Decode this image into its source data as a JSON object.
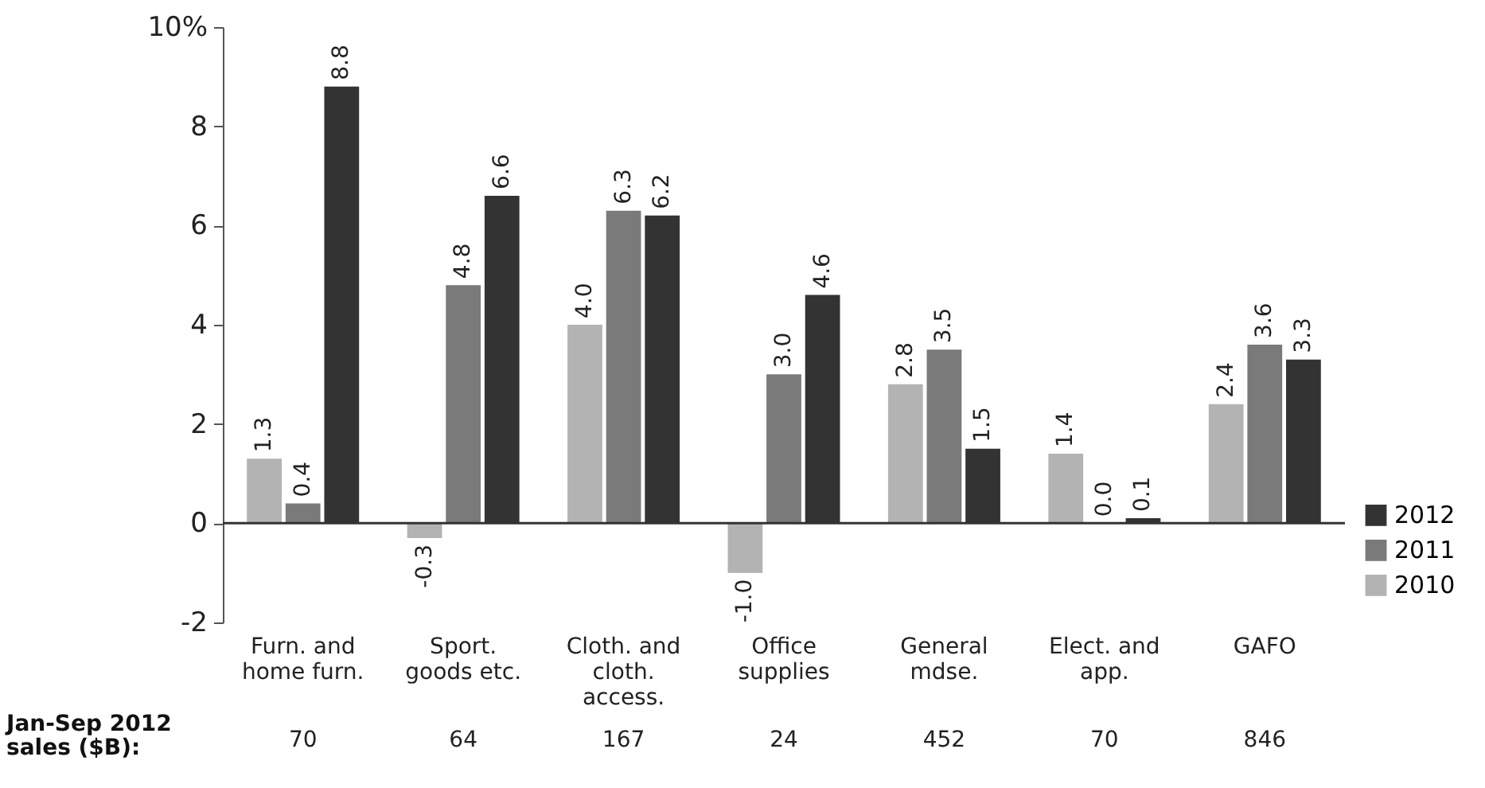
{
  "chart_data": {
    "type": "bar",
    "categories": [
      "Furn. and home furn.",
      "Sport. goods etc.",
      "Cloth. and cloth. access.",
      "Office supplies",
      "General mdse.",
      "Elect. and app.",
      "GAFO"
    ],
    "series": [
      {
        "name": "2010",
        "color": "#b3b3b3",
        "values": [
          1.3,
          -0.3,
          4.0,
          -1.0,
          2.8,
          1.4,
          2.4
        ],
        "value_labels": [
          "1.3",
          "-0.3",
          "4.0",
          "-1.0",
          "2.8",
          "1.4",
          "2.4"
        ]
      },
      {
        "name": "2011",
        "color": "#7a7a7a",
        "values": [
          0.4,
          4.8,
          6.3,
          3.0,
          3.5,
          0.0,
          3.6
        ],
        "value_labels": [
          "0.4",
          "4.8",
          "6.3",
          "3.0",
          "3.5",
          "0.0",
          "3.6"
        ]
      },
      {
        "name": "2012",
        "color": "#333333",
        "values": [
          8.8,
          6.6,
          6.2,
          4.6,
          1.5,
          0.1,
          3.3
        ],
        "value_labels": [
          "8.8",
          "6.6",
          "6.2",
          "4.6",
          "1.5",
          "0.1",
          "3.3"
        ]
      }
    ],
    "ylim": [
      -2,
      10
    ],
    "yticks": [
      -2,
      0,
      2,
      4,
      6,
      8,
      {
        "value": 10,
        "label": "10%"
      }
    ],
    "ref_lines": [
      {
        "axis": "y",
        "value": 0,
        "color": "#333333"
      }
    ],
    "legend": "bottom right",
    "annotations": [
      "Jan-Sep 2012 sales ($B):",
      "70",
      "64",
      "167",
      "24",
      "452",
      "70",
      "846"
    ]
  }
}
